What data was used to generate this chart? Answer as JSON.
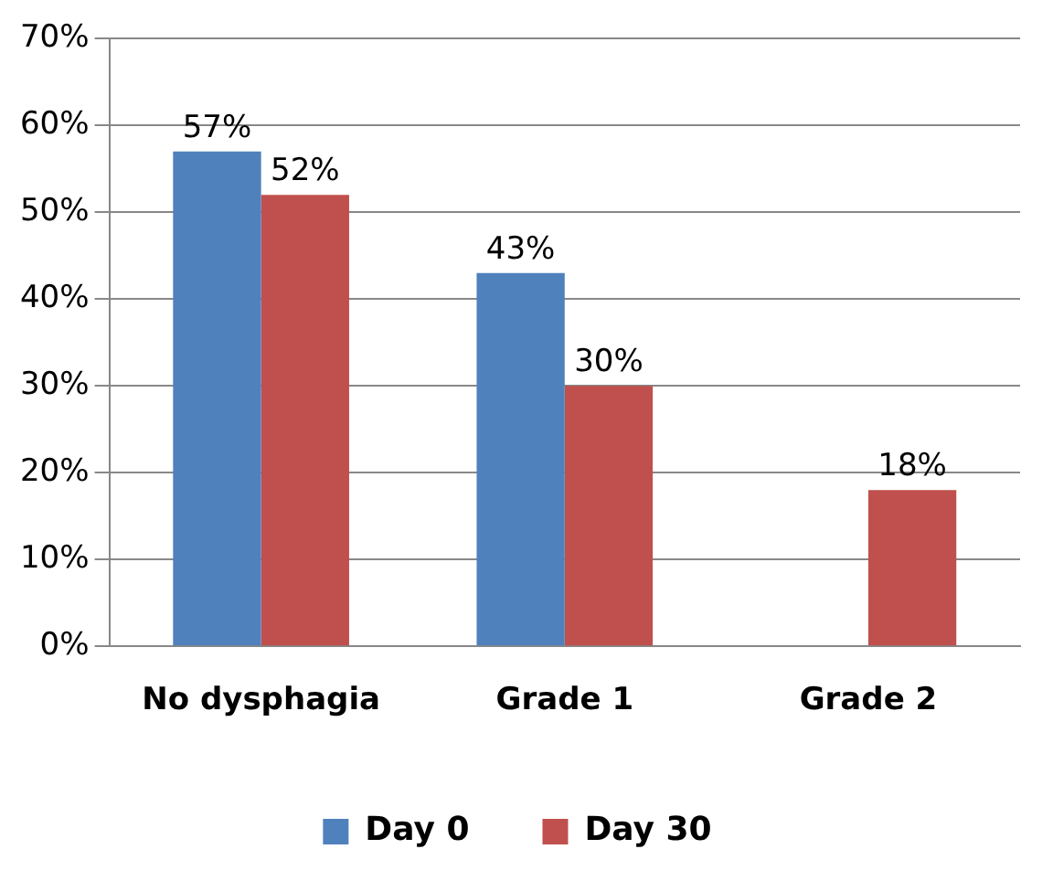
{
  "chart_data": {
    "type": "bar",
    "categories": [
      "No dysphagia",
      "Grade 1",
      "Grade 2"
    ],
    "series": [
      {
        "name": "Day 0",
        "color": "#4f81bd",
        "values": [
          57,
          43,
          null
        ],
        "value_labels": [
          "57%",
          "43%",
          null
        ]
      },
      {
        "name": "Day 30",
        "color": "#c0504d",
        "values": [
          52,
          30,
          18
        ],
        "value_labels": [
          "52%",
          "30%",
          "18%"
        ]
      }
    ],
    "ylim": [
      0,
      70
    ],
    "yticks": [
      {
        "value": 0,
        "label": "0%"
      },
      {
        "value": 10,
        "label": "10%"
      },
      {
        "value": 20,
        "label": "20%"
      },
      {
        "value": 30,
        "label": "30%"
      },
      {
        "value": 40,
        "label": "40%"
      },
      {
        "value": 50,
        "label": "50%"
      },
      {
        "value": 60,
        "label": "60%"
      },
      {
        "value": 70,
        "label": "70%"
      }
    ],
    "grid": "y",
    "legend": "bottom"
  }
}
